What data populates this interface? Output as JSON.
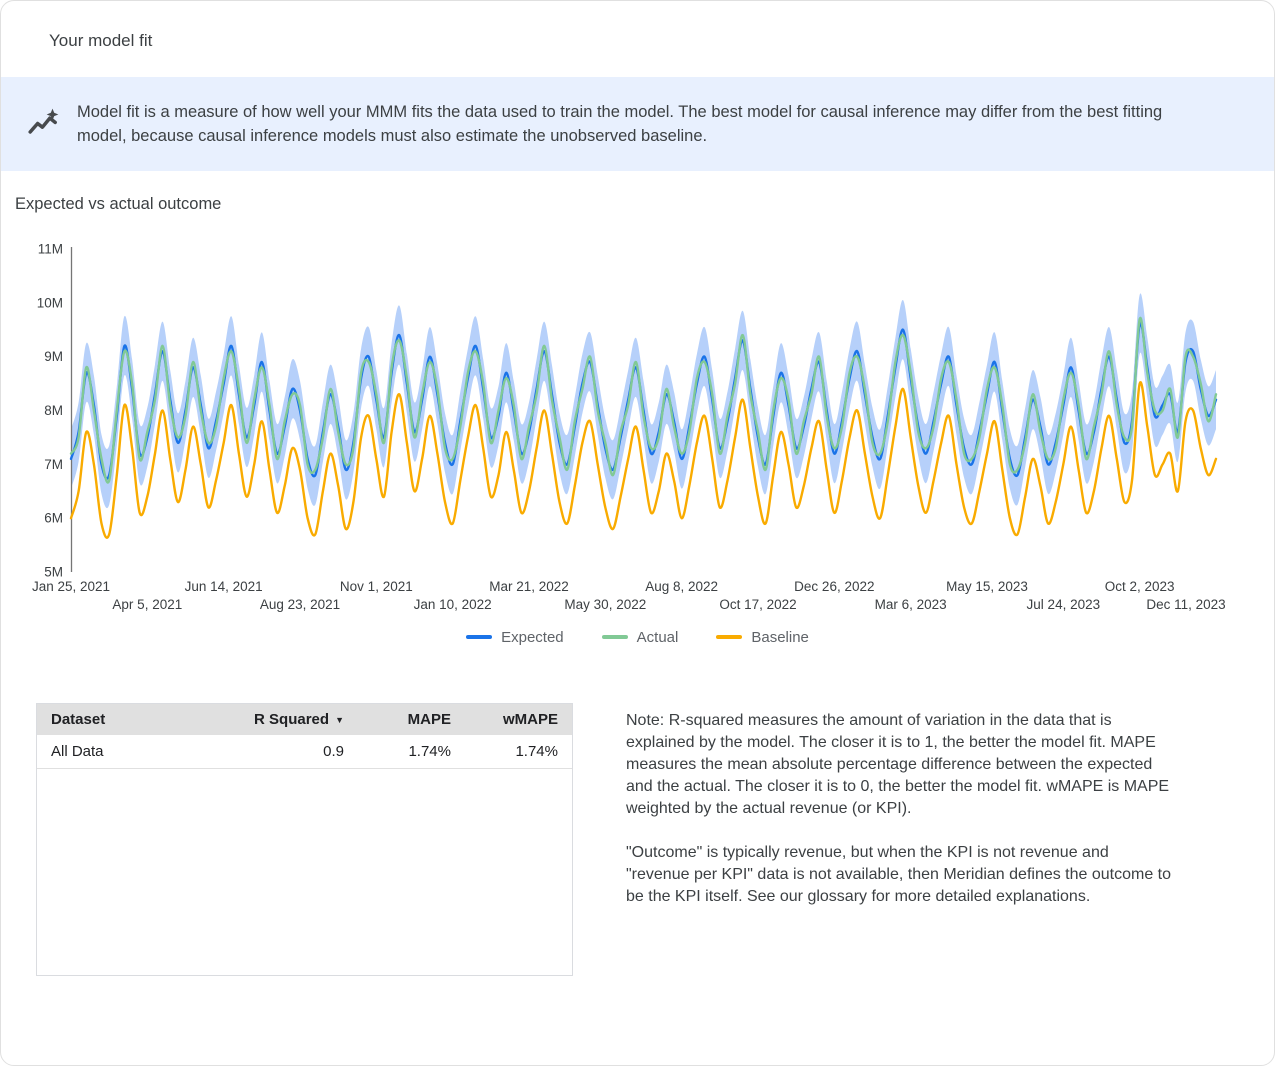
{
  "header": {
    "title": "Your model fit"
  },
  "banner": {
    "icon": "insights-sparkline-icon",
    "icon_color": "#474a4d",
    "background": "#e8f0fe",
    "text": "Model fit is a measure of how well your MMM fits the data used to train the model. The best model for causal inference may differ from the best fitting model, because causal inference models must also estimate the unobserved baseline."
  },
  "section": {
    "title": "Expected vs actual outcome"
  },
  "chart_data": {
    "type": "line",
    "title": "Expected vs actual outcome",
    "x_range": [
      "Jan 25, 2021",
      "Dec 11, 2023"
    ],
    "frequency": "weekly",
    "ylim_millions": [
      5,
      11
    ],
    "grid": false,
    "y_tick_labels": [
      "11M",
      "10M",
      "9M",
      "8M",
      "7M",
      "6M",
      "5M"
    ],
    "x_tick_labels": [
      "Jan 25, 2021",
      "Apr 5, 2021",
      "Jun 14, 2021",
      "Aug 23, 2021",
      "Nov 1, 2021",
      "Jan 10, 2022",
      "Mar 21, 2022",
      "May 30, 2022",
      "Aug 8, 2022",
      "Oct 17, 2022",
      "Dec 26, 2022",
      "Mar 6, 2023",
      "May 15, 2023",
      "Jul 24, 2023",
      "Oct 2, 2023",
      "Dec 11, 2023"
    ],
    "legend_position": "bottom-center",
    "legend": [
      {
        "name": "Expected",
        "color": "#1a73e8"
      },
      {
        "name": "Actual",
        "color": "#81c995"
      },
      {
        "name": "Baseline",
        "color": "#f9ab00"
      }
    ],
    "credible_interval": {
      "around": "Expected",
      "halfwidth_millions": 0.55,
      "color": "#aecbfa"
    },
    "series": [
      {
        "name": "Expected",
        "color": "#1a73e8",
        "values_millions": [
          7.1,
          7.6,
          8.7,
          8.1,
          7.0,
          6.8,
          7.9,
          9.2,
          8.4,
          7.2,
          7.5,
          8.3,
          9.1,
          8.2,
          7.4,
          8.0,
          8.8,
          8.1,
          7.3,
          7.8,
          8.5,
          9.2,
          8.3,
          7.5,
          8.1,
          8.9,
          8.0,
          7.2,
          7.7,
          8.4,
          8.0,
          7.1,
          6.8,
          7.6,
          8.3,
          7.7,
          6.9,
          7.4,
          8.6,
          9.0,
          8.2,
          7.5,
          8.7,
          9.4,
          8.5,
          7.6,
          8.2,
          9.0,
          8.3,
          7.4,
          7.0,
          7.8,
          8.6,
          9.2,
          8.4,
          7.5,
          7.9,
          8.7,
          8.0,
          7.2,
          7.6,
          8.4,
          9.1,
          8.3,
          7.4,
          7.0,
          7.7,
          8.5,
          8.9,
          8.1,
          7.3,
          6.9,
          7.5,
          8.2,
          8.8,
          8.0,
          7.2,
          7.6,
          8.3,
          7.8,
          7.1,
          7.7,
          8.5,
          9.0,
          8.2,
          7.3,
          7.8,
          8.6,
          9.3,
          8.4,
          7.5,
          7.0,
          7.9,
          8.7,
          8.1,
          7.3,
          7.7,
          8.4,
          8.9,
          8.0,
          7.2,
          7.8,
          8.6,
          9.1,
          8.3,
          7.5,
          7.1,
          7.9,
          8.8,
          9.5,
          8.6,
          7.7,
          7.2,
          7.8,
          8.5,
          9.0,
          8.1,
          7.3,
          7.0,
          7.6,
          8.3,
          8.9,
          8.0,
          7.1,
          6.8,
          7.5,
          8.2,
          7.7,
          7.0,
          7.4,
          8.1,
          8.8,
          8.0,
          7.2,
          7.6,
          8.4,
          9.0,
          8.2,
          7.4,
          7.8,
          9.6,
          8.8,
          7.9,
          8.1,
          8.3,
          7.6,
          8.9,
          9.1,
          8.4,
          7.9,
          8.2
        ]
      },
      {
        "name": "Actual",
        "color": "#81c995",
        "values_millions": [
          7.2,
          7.5,
          8.8,
          8.0,
          7.1,
          6.7,
          8.0,
          9.1,
          8.5,
          7.1,
          7.6,
          8.2,
          9.2,
          8.1,
          7.5,
          7.9,
          8.9,
          8.0,
          7.4,
          7.7,
          8.6,
          9.1,
          8.4,
          7.4,
          8.2,
          8.8,
          8.1,
          7.1,
          7.8,
          8.3,
          8.1,
          7.0,
          6.9,
          7.5,
          8.4,
          7.6,
          7.0,
          7.3,
          8.7,
          8.9,
          8.3,
          7.4,
          8.8,
          9.3,
          8.6,
          7.5,
          8.3,
          8.9,
          8.4,
          7.3,
          7.1,
          7.7,
          8.7,
          9.1,
          8.5,
          7.4,
          8.0,
          8.6,
          8.1,
          7.1,
          7.7,
          8.3,
          9.2,
          8.2,
          7.5,
          6.9,
          7.8,
          8.4,
          9.0,
          8.0,
          7.4,
          6.8,
          7.6,
          8.1,
          8.9,
          7.9,
          7.3,
          7.5,
          8.4,
          7.7,
          7.2,
          7.6,
          8.6,
          8.9,
          8.3,
          7.2,
          7.9,
          8.5,
          9.4,
          8.3,
          7.6,
          6.9,
          8.0,
          8.6,
          8.2,
          7.2,
          7.8,
          8.3,
          9.0,
          7.9,
          7.3,
          7.7,
          8.7,
          9.0,
          8.4,
          7.4,
          7.2,
          7.8,
          8.9,
          9.4,
          8.7,
          7.6,
          7.3,
          7.7,
          8.6,
          8.9,
          8.2,
          7.2,
          7.1,
          7.5,
          8.4,
          8.8,
          8.1,
          7.0,
          6.9,
          7.4,
          8.3,
          7.6,
          7.1,
          7.3,
          8.2,
          8.7,
          8.1,
          7.1,
          7.7,
          8.3,
          9.1,
          8.1,
          7.5,
          7.7,
          9.7,
          8.7,
          8.0,
          8.0,
          8.4,
          7.5,
          9.0,
          9.0,
          8.5,
          7.8,
          8.3
        ]
      },
      {
        "name": "Baseline",
        "color": "#f9ab00",
        "values_millions": [
          6.0,
          6.5,
          7.6,
          7.0,
          5.9,
          5.7,
          6.8,
          8.1,
          7.3,
          6.1,
          6.4,
          7.2,
          8.0,
          7.1,
          6.3,
          6.9,
          7.7,
          7.0,
          6.2,
          6.7,
          7.4,
          8.1,
          7.2,
          6.4,
          7.0,
          7.8,
          6.9,
          6.1,
          6.6,
          7.3,
          6.9,
          6.0,
          5.7,
          6.5,
          7.2,
          6.6,
          5.8,
          6.3,
          7.5,
          7.9,
          7.1,
          6.4,
          7.6,
          8.3,
          7.4,
          6.5,
          7.1,
          7.9,
          7.2,
          6.3,
          5.9,
          6.7,
          7.5,
          8.1,
          7.3,
          6.4,
          6.8,
          7.6,
          6.9,
          6.1,
          6.5,
          7.3,
          8.0,
          7.2,
          6.3,
          5.9,
          6.6,
          7.4,
          7.8,
          7.0,
          6.2,
          5.8,
          6.4,
          7.1,
          7.7,
          6.9,
          6.1,
          6.5,
          7.2,
          6.7,
          6.0,
          6.6,
          7.4,
          7.9,
          7.1,
          6.2,
          6.7,
          7.5,
          8.2,
          7.3,
          6.4,
          5.9,
          6.8,
          7.6,
          7.0,
          6.2,
          6.6,
          7.3,
          7.8,
          6.9,
          6.1,
          6.7,
          7.5,
          8.0,
          7.2,
          6.4,
          6.0,
          6.8,
          7.7,
          8.4,
          7.5,
          6.6,
          6.1,
          6.7,
          7.4,
          7.9,
          7.0,
          6.2,
          5.9,
          6.5,
          7.2,
          7.8,
          6.9,
          6.0,
          5.7,
          6.4,
          7.1,
          6.6,
          5.9,
          6.3,
          7.0,
          7.7,
          6.9,
          6.1,
          6.5,
          7.3,
          7.9,
          7.1,
          6.3,
          6.7,
          8.5,
          7.7,
          6.8,
          7.0,
          7.2,
          6.5,
          7.8,
          8.0,
          7.3,
          6.8,
          7.1
        ]
      }
    ]
  },
  "table": {
    "sort_caret": "▼",
    "columns": [
      {
        "label": "Dataset",
        "align": "left",
        "sorted": false
      },
      {
        "label": "R Squared",
        "align": "right",
        "sorted": true
      },
      {
        "label": "MAPE",
        "align": "right",
        "sorted": false
      },
      {
        "label": "wMAPE",
        "align": "right",
        "sorted": false
      }
    ],
    "rows": [
      [
        "All Data",
        "0.9",
        "1.74%",
        "1.74%"
      ]
    ]
  },
  "note": {
    "paragraph1": "Note: R-squared measures the amount of variation in the data that is explained by the model. The closer it is to 1, the better the model fit. MAPE measures the mean absolute percentage difference between the expected and the actual. The closer it is to 0, the better the model fit. wMAPE is MAPE weighted by the actual revenue (or KPI).",
    "paragraph2": "\"Outcome\" is typically revenue, but when the KPI is not revenue and \"revenue per KPI\" data is not available, then Meridian defines the outcome to be the KPI itself. See our glossary for more detailed explanations."
  }
}
